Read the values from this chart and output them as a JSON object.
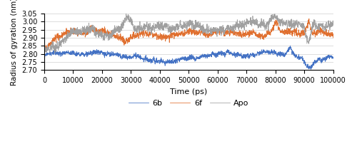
{
  "title": "",
  "xlabel": "Time (ps)",
  "ylabel": "Radius of gyration (nm)",
  "xlim": [
    0,
    100000
  ],
  "ylim": [
    2.7,
    3.05
  ],
  "yticks": [
    2.7,
    2.75,
    2.8,
    2.85,
    2.9,
    2.95,
    3.0,
    3.05
  ],
  "xticks": [
    0,
    10000,
    20000,
    30000,
    40000,
    50000,
    60000,
    70000,
    80000,
    90000,
    100000
  ],
  "color_6b": "#4472C4",
  "color_6f": "#E07030",
  "color_apo": "#A0A0A0",
  "line_width": 0.55,
  "legend_labels": [
    "6b",
    "6f",
    "Apo"
  ],
  "figsize": [
    5.0,
    2.33
  ],
  "dpi": 100
}
